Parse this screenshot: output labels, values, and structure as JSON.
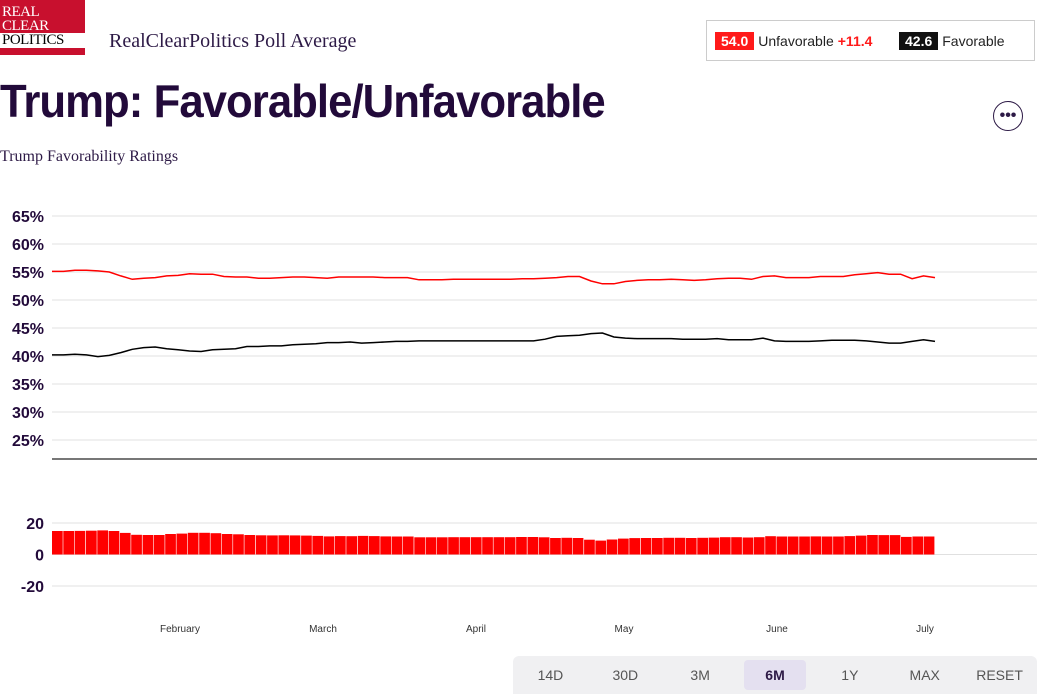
{
  "logo": {
    "line1": "REAL",
    "line2": "CLEAR",
    "line3": "POLITICS"
  },
  "brand": "RealClearPolitics Poll Average",
  "summary": {
    "unfavorable_value": "54.0",
    "unfavorable_label": "Unfavorable",
    "spread": "+11.4",
    "favorable_value": "42.6",
    "favorable_label": "Favorable"
  },
  "title": "Trump: Favorable/Unfavorable",
  "subtitle": "Trump Favorability Ratings",
  "more_icon": "•••",
  "ranges": [
    "14D",
    "30D",
    "3M",
    "6M",
    "1Y",
    "MAX",
    "RESET"
  ],
  "active_range": "6M",
  "colors": {
    "unfavorable": "#ff0000",
    "favorable": "#000000",
    "spread": "#ff0000"
  },
  "chart_data": {
    "type": "line",
    "months": [
      "February",
      "March",
      "April",
      "May",
      "June",
      "July"
    ],
    "y_ticks": [
      "65%",
      "60%",
      "55%",
      "50%",
      "45%",
      "40%",
      "35%",
      "30%",
      "25%"
    ],
    "ylim": [
      25,
      65
    ],
    "spread_ticks": [
      "20",
      "0",
      "-20"
    ],
    "spread_ylim": [
      -20,
      20
    ],
    "x_note": "values sampled at evenly spaced points from mid-January to early July",
    "series": [
      {
        "name": "Unfavorable",
        "values": [
          55.1,
          55.1,
          55.3,
          55.3,
          55.2,
          55.0,
          54.3,
          53.7,
          53.9,
          54.0,
          54.3,
          54.4,
          54.7,
          54.6,
          54.6,
          54.2,
          54.1,
          54.1,
          53.9,
          53.9,
          54.0,
          54.1,
          54.1,
          54.0,
          53.9,
          54.1,
          54.1,
          54.1,
          54.1,
          54.0,
          54.0,
          54.0,
          53.6,
          53.6,
          53.6,
          53.7,
          53.7,
          53.7,
          53.7,
          53.7,
          53.7,
          53.8,
          53.8,
          53.9,
          54.0,
          54.2,
          54.2,
          53.4,
          52.9,
          52.9,
          53.3,
          53.5,
          53.6,
          53.6,
          53.7,
          53.6,
          53.5,
          53.6,
          53.8,
          53.9,
          53.9,
          53.7,
          54.2,
          54.3,
          54.0,
          54.0,
          54.0,
          54.2,
          54.2,
          54.2,
          54.5,
          54.7,
          54.9,
          54.6,
          54.6,
          53.8,
          54.3,
          54.0
        ]
      },
      {
        "name": "Favorable",
        "values": [
          40.2,
          40.2,
          40.3,
          40.2,
          39.9,
          40.1,
          40.6,
          41.2,
          41.5,
          41.6,
          41.3,
          41.1,
          40.9,
          40.8,
          41.1,
          41.2,
          41.3,
          41.7,
          41.7,
          41.8,
          41.8,
          42.0,
          42.1,
          42.2,
          42.4,
          42.4,
          42.5,
          42.3,
          42.4,
          42.5,
          42.6,
          42.6,
          42.7,
          42.7,
          42.7,
          42.7,
          42.7,
          42.7,
          42.7,
          42.7,
          42.7,
          42.7,
          42.7,
          43.0,
          43.5,
          43.6,
          43.7,
          44.0,
          44.1,
          43.4,
          43.2,
          43.1,
          43.1,
          43.1,
          43.1,
          43.0,
          43.0,
          43.0,
          43.1,
          42.9,
          42.9,
          42.9,
          43.2,
          42.7,
          42.6,
          42.6,
          42.6,
          42.7,
          42.8,
          42.8,
          42.8,
          42.7,
          42.5,
          42.3,
          42.3,
          42.6,
          42.9,
          42.6
        ]
      }
    ],
    "spread_series": {
      "name": "Spread",
      "values": [
        14.9,
        14.9,
        15.0,
        15.1,
        15.3,
        14.9,
        13.7,
        12.5,
        12.4,
        12.4,
        13.0,
        13.3,
        13.8,
        13.8,
        13.5,
        13.0,
        12.8,
        12.4,
        12.2,
        12.1,
        12.2,
        12.1,
        12.0,
        11.8,
        11.5,
        11.7,
        11.6,
        11.8,
        11.7,
        11.5,
        11.4,
        11.4,
        10.9,
        10.9,
        10.9,
        11.0,
        11.0,
        11.0,
        11.0,
        11.0,
        11.0,
        11.1,
        11.1,
        10.9,
        10.5,
        10.6,
        10.5,
        9.4,
        8.8,
        9.5,
        10.1,
        10.4,
        10.5,
        10.5,
        10.6,
        10.6,
        10.5,
        10.6,
        10.7,
        11.0,
        11.0,
        10.8,
        11.0,
        11.6,
        11.4,
        11.4,
        11.4,
        11.5,
        11.4,
        11.4,
        11.7,
        12.0,
        12.4,
        12.3,
        12.3,
        11.2,
        11.4,
        11.4
      ]
    }
  }
}
